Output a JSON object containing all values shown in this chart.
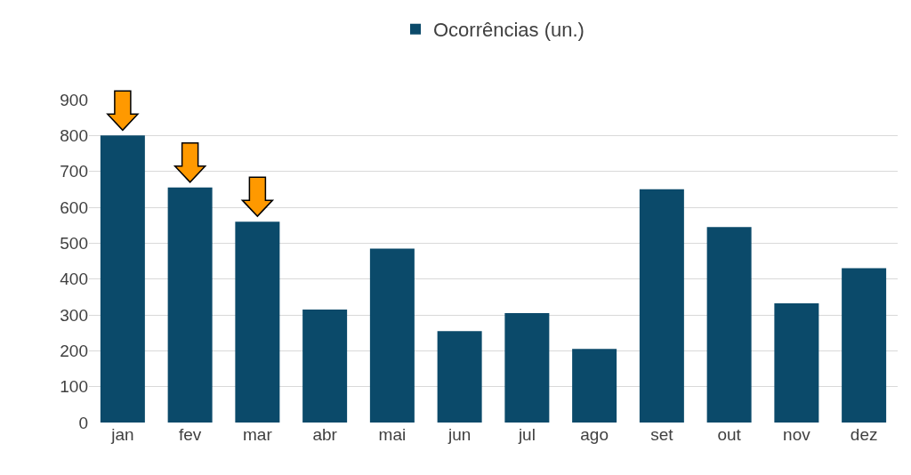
{
  "chart_data": {
    "type": "bar",
    "categories": [
      "jan",
      "fev",
      "mar",
      "abr",
      "mai",
      "jun",
      "jul",
      "ago",
      "set",
      "out",
      "nov",
      "dez"
    ],
    "series": [
      {
        "name": "Ocorrências (un.)",
        "color": "#0b4a6a",
        "values": [
          800,
          655,
          560,
          315,
          485,
          255,
          305,
          205,
          650,
          545,
          332,
          430
        ]
      }
    ],
    "ylim": [
      0,
      900
    ],
    "yticks": [
      0,
      100,
      200,
      300,
      400,
      500,
      600,
      700,
      800,
      900
    ],
    "grid": "y",
    "legend": "top"
  }
}
